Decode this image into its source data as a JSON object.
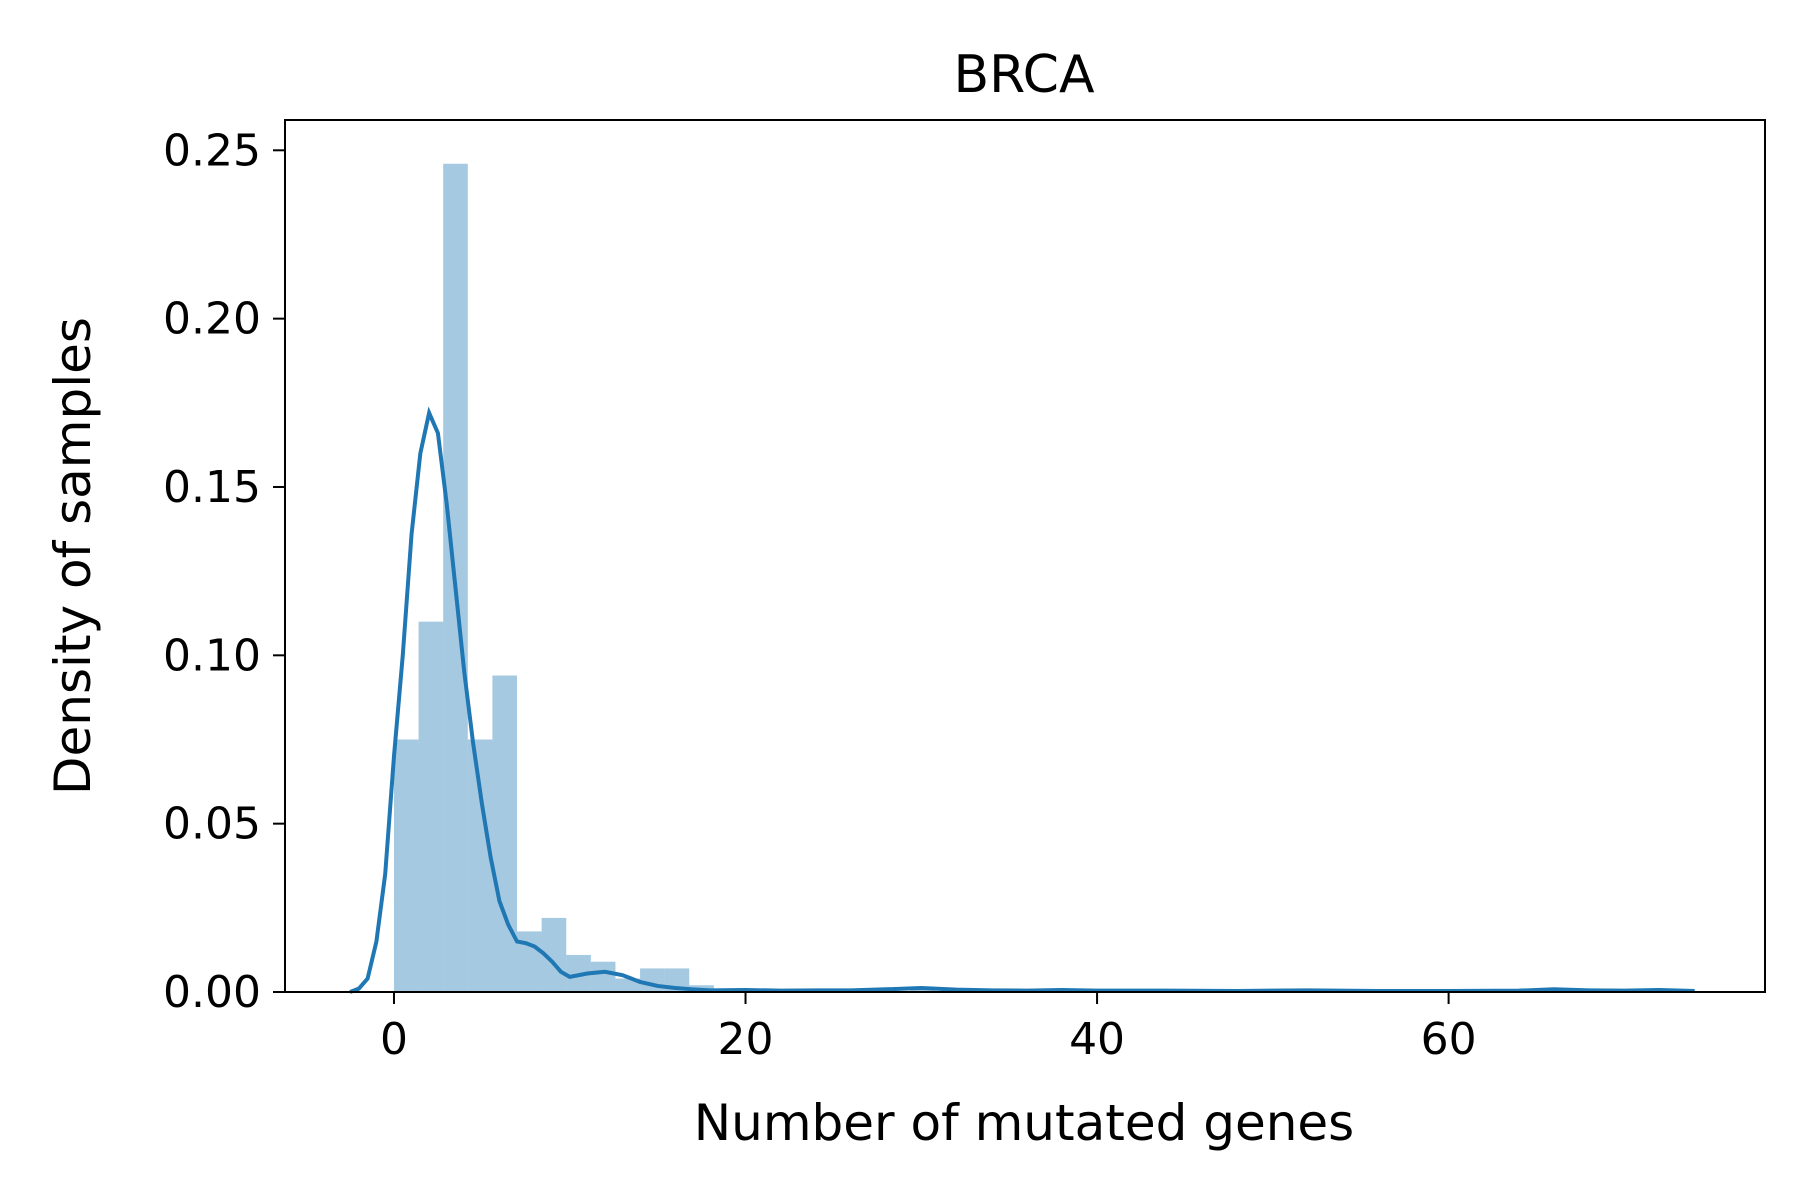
{
  "chart_data": {
    "type": "bar",
    "title": "BRCA",
    "xlabel": "Number of mutated genes",
    "ylabel": "Density of samples",
    "xlim": [
      -6.2,
      78
    ],
    "ylim": [
      0,
      0.259
    ],
    "x_ticks": [
      0,
      20,
      40,
      60
    ],
    "y_ticks": [
      0.0,
      0.05,
      0.1,
      0.15,
      0.2,
      0.25
    ],
    "y_tick_labels": [
      "0.00",
      "0.05",
      "0.10",
      "0.15",
      "0.20",
      "0.25"
    ],
    "grid": false,
    "histogram": {
      "bin_width": 1.4,
      "bins": [
        {
          "x0": 0.0,
          "x1": 1.4,
          "density": 0.075
        },
        {
          "x0": 1.4,
          "x1": 2.8,
          "density": 0.11
        },
        {
          "x0": 2.8,
          "x1": 4.2,
          "density": 0.246
        },
        {
          "x0": 4.2,
          "x1": 5.6,
          "density": 0.075
        },
        {
          "x0": 5.6,
          "x1": 7.0,
          "density": 0.094
        },
        {
          "x0": 7.0,
          "x1": 8.4,
          "density": 0.018
        },
        {
          "x0": 8.4,
          "x1": 9.8,
          "density": 0.022
        },
        {
          "x0": 9.8,
          "x1": 11.2,
          "density": 0.011
        },
        {
          "x0": 11.2,
          "x1": 12.6,
          "density": 0.009
        },
        {
          "x0": 12.6,
          "x1": 14.0,
          "density": 0.004
        },
        {
          "x0": 14.0,
          "x1": 15.4,
          "density": 0.007
        },
        {
          "x0": 15.4,
          "x1": 16.8,
          "density": 0.007
        },
        {
          "x0": 16.8,
          "x1": 18.2,
          "density": 0.002
        },
        {
          "x0": 18.2,
          "x1": 19.6,
          "density": 0.001
        },
        {
          "x0": 19.6,
          "x1": 21.0,
          "density": 0.0005
        },
        {
          "x0": 29.4,
          "x1": 30.8,
          "density": 0.0008
        },
        {
          "x0": 37.8,
          "x1": 39.2,
          "density": 0.0006
        },
        {
          "x0": 65.8,
          "x1": 67.2,
          "density": 0.0006
        }
      ]
    },
    "kde": {
      "x": [
        -2.5,
        -2.0,
        -1.5,
        -1.0,
        -0.5,
        0.0,
        0.5,
        1.0,
        1.5,
        2.0,
        2.5,
        3.0,
        3.5,
        4.0,
        4.5,
        5.0,
        5.5,
        6.0,
        6.5,
        7.0,
        7.5,
        8.0,
        8.5,
        9.0,
        9.5,
        10.0,
        11.0,
        12.0,
        13.0,
        13.5,
        14.0,
        15.0,
        16.0,
        17.0,
        18.0,
        20.0,
        22.0,
        24.0,
        26.0,
        28.0,
        30.0,
        32.0,
        34.0,
        36.0,
        38.0,
        40.0,
        44.0,
        48.0,
        52.0,
        56.0,
        60.0,
        64.0,
        66.0,
        68.0,
        70.0,
        72.0,
        74.0
      ],
      "y": [
        0.0,
        0.001,
        0.004,
        0.015,
        0.035,
        0.07,
        0.1,
        0.136,
        0.16,
        0.172,
        0.166,
        0.145,
        0.12,
        0.095,
        0.074,
        0.056,
        0.04,
        0.027,
        0.02,
        0.015,
        0.0145,
        0.0135,
        0.0115,
        0.009,
        0.006,
        0.0045,
        0.0055,
        0.006,
        0.005,
        0.004,
        0.003,
        0.0018,
        0.0012,
        0.0008,
        0.0005,
        0.0006,
        0.0004,
        0.0005,
        0.0005,
        0.0008,
        0.0012,
        0.0007,
        0.0005,
        0.0004,
        0.0006,
        0.0004,
        0.0004,
        0.0003,
        0.0005,
        0.0003,
        0.0003,
        0.0004,
        0.0008,
        0.0005,
        0.0004,
        0.0006,
        0.0003
      ],
      "color": "#1f77b4"
    },
    "bar_color": "#1f77b4",
    "bar_opacity": 0.4
  }
}
